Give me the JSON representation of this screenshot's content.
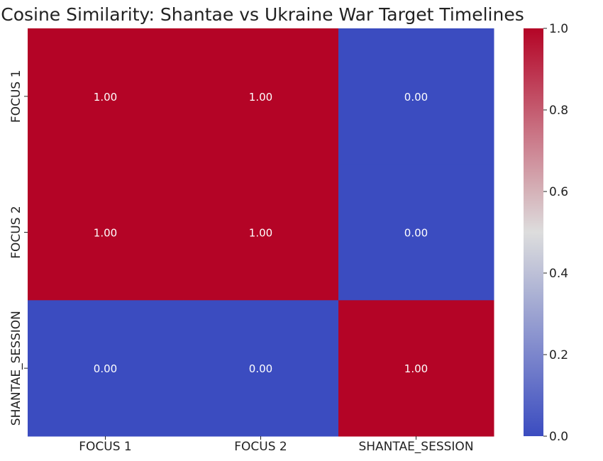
{
  "chart_data": {
    "type": "heatmap",
    "title": "Cosine Similarity: Shantae vs Ukraine War Target Timelines",
    "rows": [
      "FOCUS 1",
      "FOCUS 2",
      "SHANTAE_SESSION"
    ],
    "columns": [
      "FOCUS 1",
      "FOCUS 2",
      "SHANTAE_SESSION"
    ],
    "values": [
      [
        1.0,
        1.0,
        0.0
      ],
      [
        1.0,
        1.0,
        0.0
      ],
      [
        0.0,
        0.0,
        1.0
      ]
    ],
    "value_labels": [
      [
        "1.00",
        "1.00",
        "0.00"
      ],
      [
        "1.00",
        "1.00",
        "0.00"
      ],
      [
        "0.00",
        "0.00",
        "1.00"
      ]
    ],
    "colormap": "coolwarm",
    "colors": {
      "low": "#3b4cc0",
      "mid": "#dddddd",
      "high": "#b40426"
    },
    "colorbar": {
      "range": [
        0.0,
        1.0
      ],
      "ticks": [
        "0.0",
        "0.2",
        "0.4",
        "0.6",
        "0.8",
        "1.0"
      ],
      "tick_values": [
        0.0,
        0.2,
        0.4,
        0.6,
        0.8,
        1.0
      ],
      "position": "right"
    }
  }
}
